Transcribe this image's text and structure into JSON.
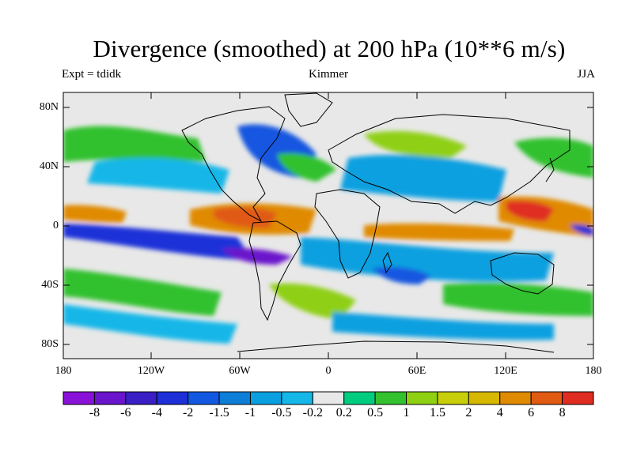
{
  "title": "Divergence (smoothed) at 200 hPa (10**6 m/s)",
  "subtitle_left": "Expt = tdidk",
  "subtitle_center": "Kimmer",
  "subtitle_right": "JJA",
  "lat_labels": [
    "80N",
    "40N",
    "0",
    "40S",
    "80S"
  ],
  "lon_labels": [
    "180",
    "120W",
    "60W",
    "0",
    "60E",
    "120E",
    "180"
  ],
  "colorbar": {
    "labels": [
      "-8",
      "-6",
      "-4",
      "-2",
      "-1.5",
      "-1",
      "-0.5",
      "-0.2",
      "0.2",
      "0.5",
      "1",
      "1.5",
      "2",
      "4",
      "6",
      "8"
    ],
    "colors": [
      "#8a12d8",
      "#6a14cc",
      "#3a1fc4",
      "#1d30d8",
      "#1257e0",
      "#0c7ed8",
      "#0aa0e0",
      "#14b7e8",
      "#e8e8e8",
      "#00cc80",
      "#33c12e",
      "#8fd012",
      "#c8ce0a",
      "#d6b800",
      "#e08a00",
      "#e05a12",
      "#e02d22"
    ]
  },
  "colors": {
    "background": "#e8e8e8",
    "coast": "#000000"
  }
}
